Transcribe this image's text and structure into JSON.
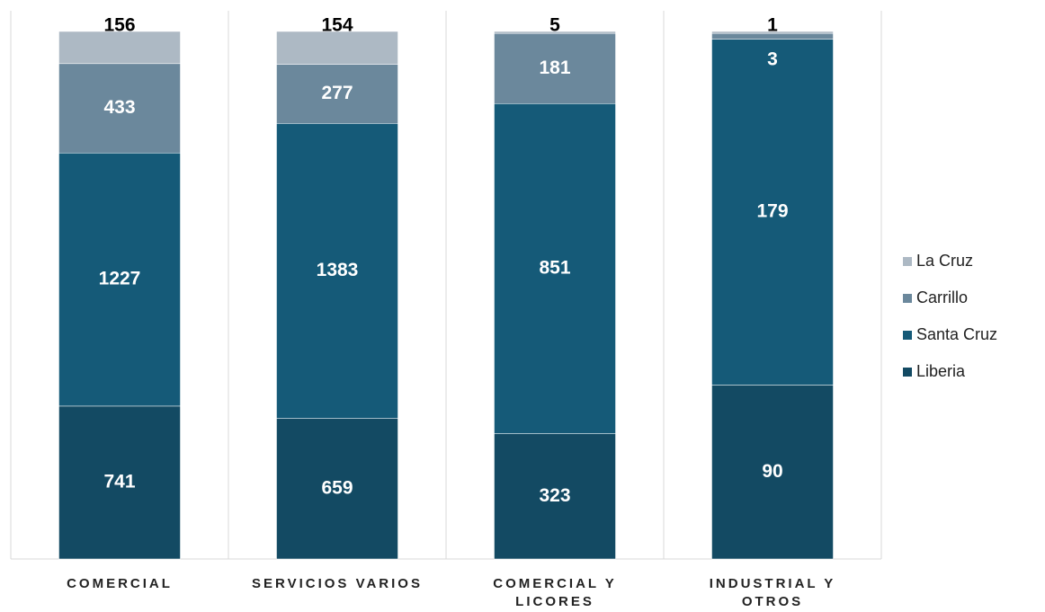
{
  "chart_data": {
    "type": "bar",
    "stacking": "percent",
    "categories": [
      "COMERCIAL",
      "SERVICIOS VARIOS",
      "COMERCIAL Y LICORES",
      "INDUSTRIAL Y OTROS"
    ],
    "series": [
      {
        "name": "Liberia",
        "color": "#134a63",
        "values": [
          741,
          659,
          323,
          90
        ]
      },
      {
        "name": "Santa Cruz",
        "color": "#155a78",
        "values": [
          1227,
          1383,
          851,
          179
        ]
      },
      {
        "name": "Carrillo",
        "color": "#6b889c",
        "values": [
          433,
          277,
          181,
          3
        ]
      },
      {
        "name": "La Cruz",
        "color": "#adb9c4",
        "values": [
          156,
          154,
          5,
          1
        ]
      }
    ],
    "legend": "right"
  }
}
